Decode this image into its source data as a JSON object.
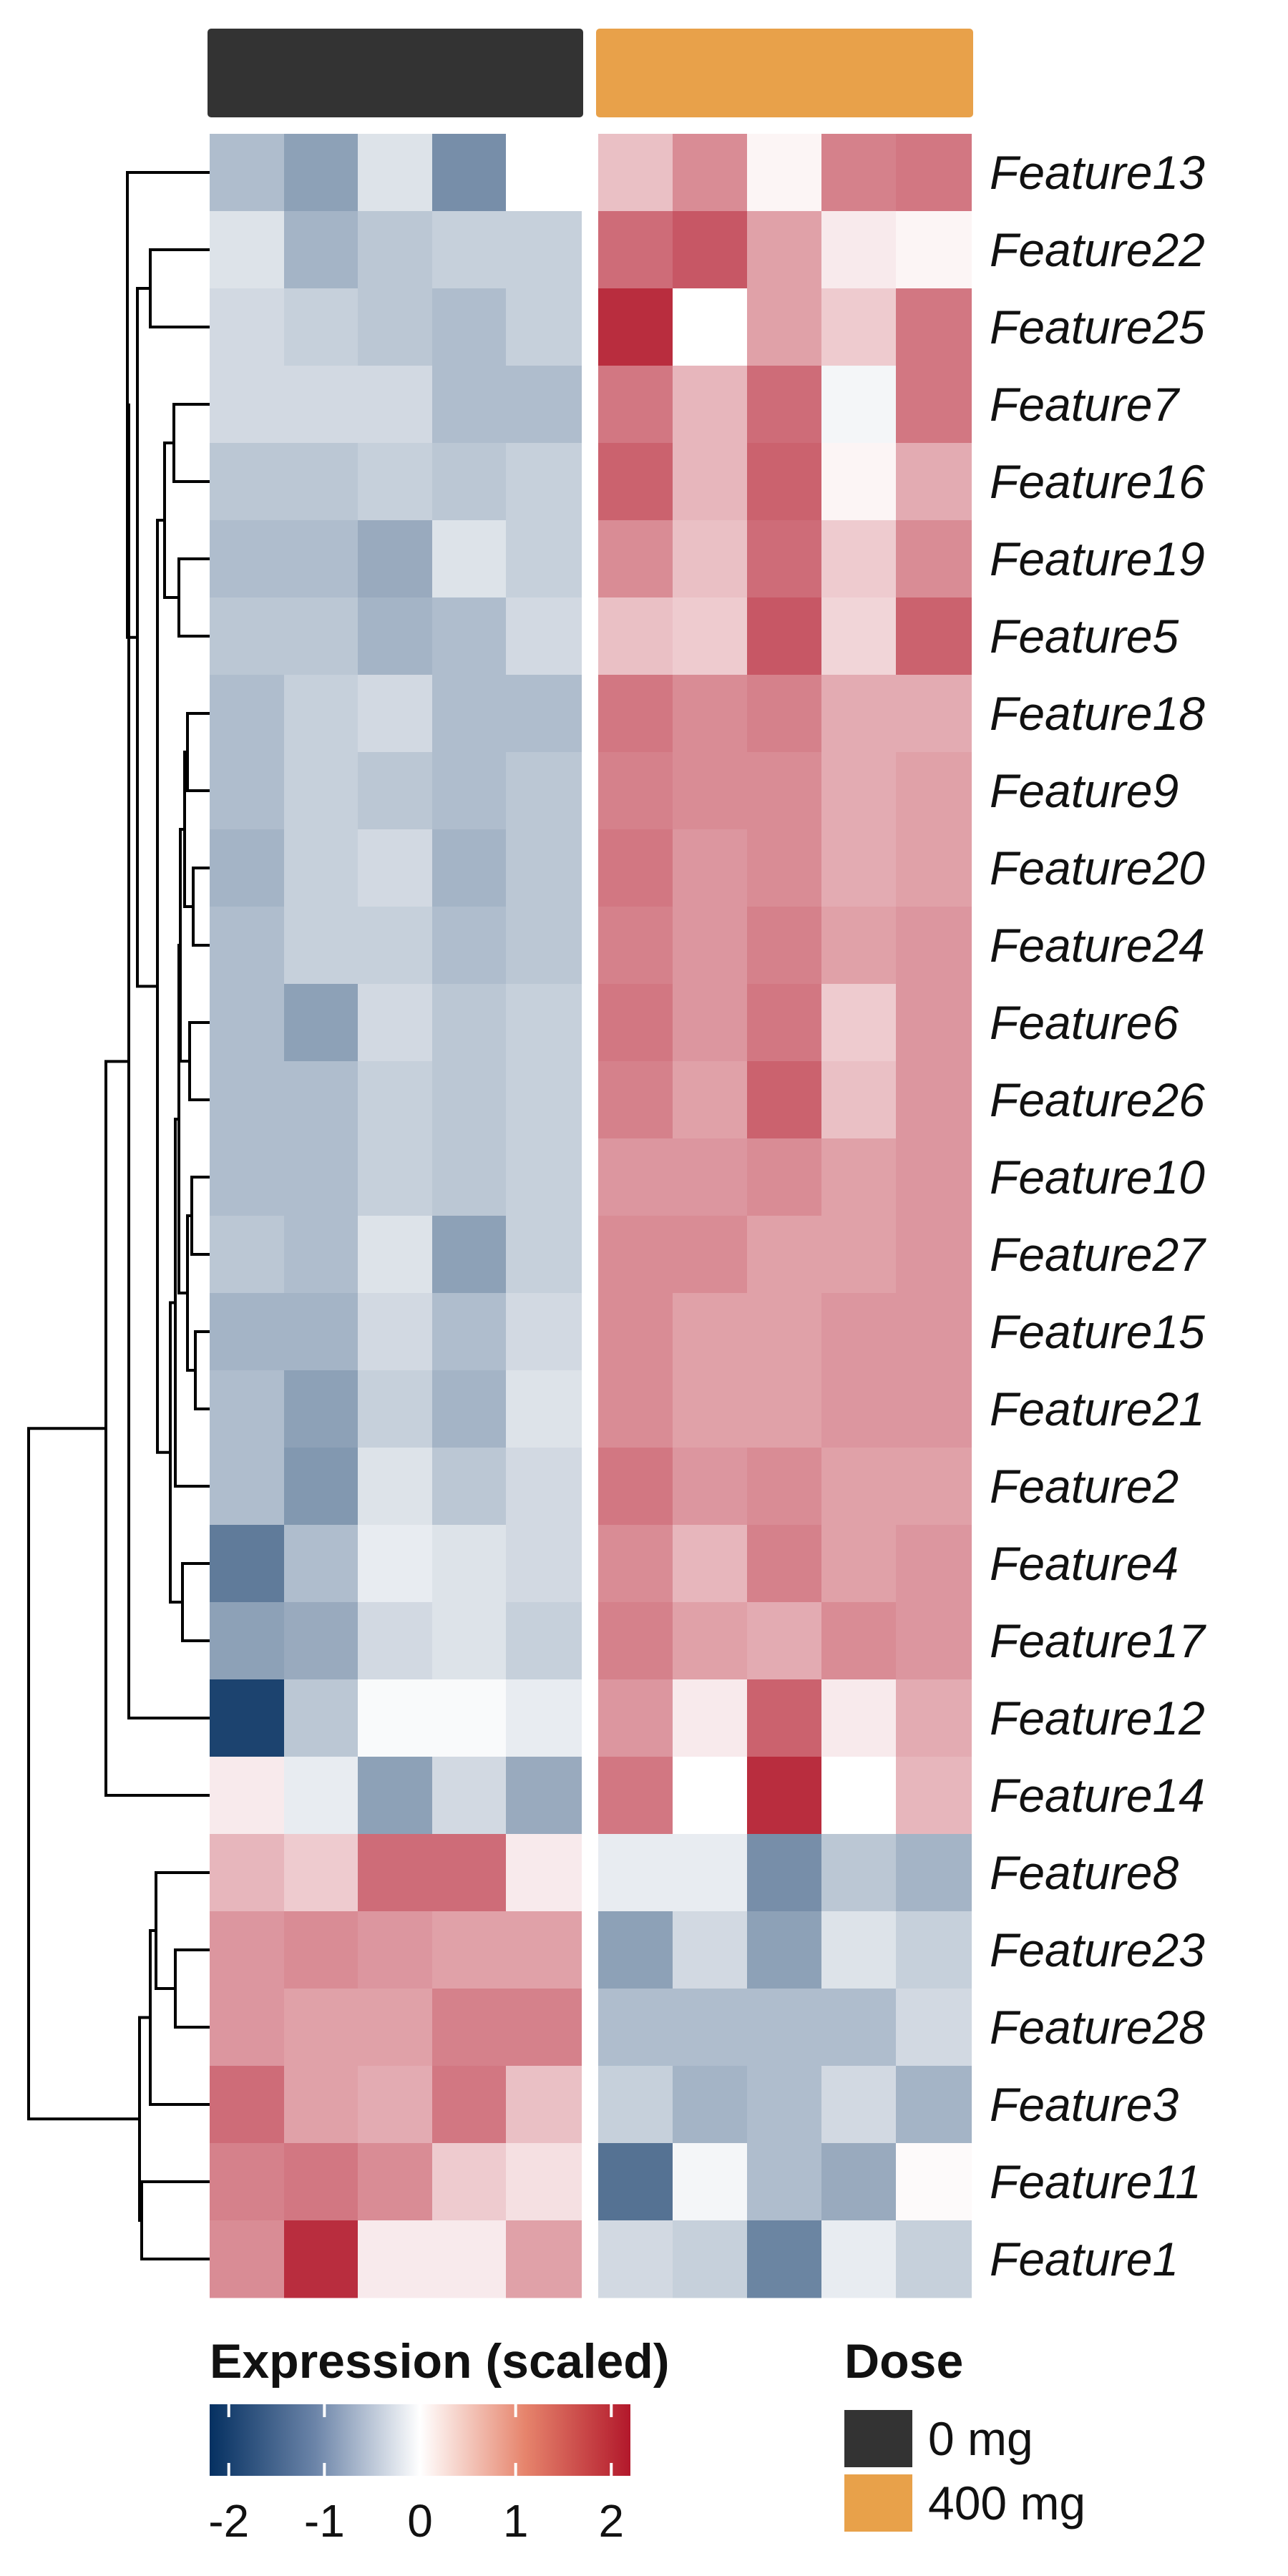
{
  "chart_data": {
    "type": "heatmap",
    "title": "",
    "xlabel": "",
    "ylabel": "",
    "color_scale": {
      "title": "Expression (scaled)",
      "range": [
        -2.2,
        2.2
      ],
      "ticks": [
        -2,
        -1,
        0,
        1,
        2
      ],
      "tick_labels": [
        "-2",
        "-1",
        "0",
        "1",
        "2"
      ],
      "low_color": "#053061",
      "mid_color": "#ffffff",
      "high_color": "#b2182b"
    },
    "annotation": {
      "title": "Dose",
      "groups": [
        {
          "label": "0 mg",
          "color": "#333333",
          "columns": 5
        },
        {
          "label": "400 mg",
          "color": "#e8a14a",
          "columns": 5
        }
      ]
    },
    "rows": [
      "Feature13",
      "Feature22",
      "Feature25",
      "Feature7",
      "Feature16",
      "Feature19",
      "Feature5",
      "Feature18",
      "Feature9",
      "Feature20",
      "Feature24",
      "Feature6",
      "Feature26",
      "Feature10",
      "Feature27",
      "Feature15",
      "Feature21",
      "Feature2",
      "Feature4",
      "Feature17",
      "Feature12",
      "Feature14",
      "Feature8",
      "Feature23",
      "Feature28",
      "Feature3",
      "Feature11",
      "Feature1"
    ],
    "values": [
      [
        -0.7,
        -1.0,
        -0.3,
        -1.2,
        0.0,
        0.6,
        1.1,
        0.1,
        1.2,
        1.3
      ],
      [
        -0.3,
        -0.8,
        -0.6,
        -0.5,
        -0.5,
        1.4,
        1.6,
        0.9,
        0.2,
        0.1
      ],
      [
        -0.4,
        -0.5,
        -0.6,
        -0.7,
        -0.5,
        2.0,
        0.0,
        0.9,
        0.5,
        1.3
      ],
      [
        -0.4,
        -0.4,
        -0.4,
        -0.7,
        -0.7,
        1.3,
        0.7,
        1.4,
        -0.1,
        1.3
      ],
      [
        -0.6,
        -0.6,
        -0.5,
        -0.6,
        -0.5,
        1.5,
        0.7,
        1.5,
        0.1,
        0.8
      ],
      [
        -0.7,
        -0.7,
        -0.9,
        -0.3,
        -0.5,
        1.1,
        0.6,
        1.4,
        0.5,
        1.1
      ],
      [
        -0.6,
        -0.6,
        -0.8,
        -0.7,
        -0.4,
        0.6,
        0.5,
        1.6,
        0.4,
        1.5
      ],
      [
        -0.7,
        -0.5,
        -0.4,
        -0.7,
        -0.7,
        1.3,
        1.1,
        1.2,
        0.8,
        0.8
      ],
      [
        -0.7,
        -0.5,
        -0.6,
        -0.7,
        -0.6,
        1.2,
        1.1,
        1.1,
        0.8,
        0.9
      ],
      [
        -0.8,
        -0.5,
        -0.4,
        -0.8,
        -0.6,
        1.3,
        1.0,
        1.1,
        0.8,
        0.9
      ],
      [
        -0.7,
        -0.5,
        -0.5,
        -0.7,
        -0.6,
        1.2,
        1.0,
        1.2,
        0.9,
        1.0
      ],
      [
        -0.7,
        -1.0,
        -0.4,
        -0.6,
        -0.5,
        1.3,
        1.0,
        1.3,
        0.5,
        1.0
      ],
      [
        -0.7,
        -0.7,
        -0.5,
        -0.6,
        -0.5,
        1.2,
        0.9,
        1.5,
        0.6,
        1.0
      ],
      [
        -0.7,
        -0.7,
        -0.5,
        -0.6,
        -0.5,
        1.0,
        1.0,
        1.1,
        0.9,
        1.0
      ],
      [
        -0.6,
        -0.7,
        -0.3,
        -1.0,
        -0.5,
        1.1,
        1.1,
        0.9,
        0.9,
        1.0
      ],
      [
        -0.8,
        -0.8,
        -0.4,
        -0.7,
        -0.4,
        1.1,
        0.9,
        0.9,
        1.0,
        1.0
      ],
      [
        -0.7,
        -1.0,
        -0.5,
        -0.8,
        -0.3,
        1.1,
        0.9,
        0.9,
        1.0,
        1.0
      ],
      [
        -0.7,
        -1.1,
        -0.3,
        -0.6,
        -0.4,
        1.3,
        1.0,
        1.1,
        0.9,
        0.9
      ],
      [
        -1.4,
        -0.7,
        -0.2,
        -0.3,
        -0.4,
        1.1,
        0.7,
        1.2,
        0.9,
        1.0
      ],
      [
        -1.0,
        -0.9,
        -0.4,
        -0.3,
        -0.5,
        1.2,
        0.9,
        0.8,
        1.1,
        1.0
      ],
      [
        -2.0,
        -0.6,
        -0.05,
        -0.05,
        -0.2,
        1.0,
        0.2,
        1.5,
        0.2,
        0.8
      ],
      [
        0.2,
        -0.2,
        -1.0,
        -0.4,
        -0.9,
        1.3,
        0.0,
        2.0,
        0.0,
        0.7
      ],
      [
        0.7,
        0.5,
        1.4,
        1.4,
        0.2,
        -0.2,
        -0.2,
        -1.2,
        -0.6,
        -0.8
      ],
      [
        1.0,
        1.1,
        1.0,
        0.9,
        0.9,
        -1.0,
        -0.4,
        -1.0,
        -0.3,
        -0.5
      ],
      [
        1.0,
        0.9,
        0.9,
        1.2,
        1.2,
        -0.7,
        -0.7,
        -0.7,
        -0.7,
        -0.4
      ],
      [
        1.4,
        0.9,
        0.8,
        1.3,
        0.6,
        -0.5,
        -0.8,
        -0.7,
        -0.4,
        -0.8
      ],
      [
        1.2,
        1.3,
        1.1,
        0.5,
        0.3,
        -1.5,
        -0.1,
        -0.7,
        -0.9,
        0.05
      ],
      [
        1.1,
        2.0,
        0.2,
        0.2,
        0.9,
        -0.4,
        -0.5,
        -1.3,
        -0.2,
        -0.5
      ]
    ],
    "dendrogram": {
      "leaf_order": [
        "Feature13",
        "Feature22",
        "Feature25",
        "Feature7",
        "Feature16",
        "Feature19",
        "Feature5",
        "Feature18",
        "Feature9",
        "Feature20",
        "Feature24",
        "Feature6",
        "Feature26",
        "Feature10",
        "Feature27",
        "Feature15",
        "Feature21",
        "Feature2",
        "Feature4",
        "Feature17",
        "Feature12",
        "Feature14",
        "Feature8",
        "Feature23",
        "Feature28",
        "Feature3",
        "Feature11",
        "Feature1"
      ]
    }
  }
}
